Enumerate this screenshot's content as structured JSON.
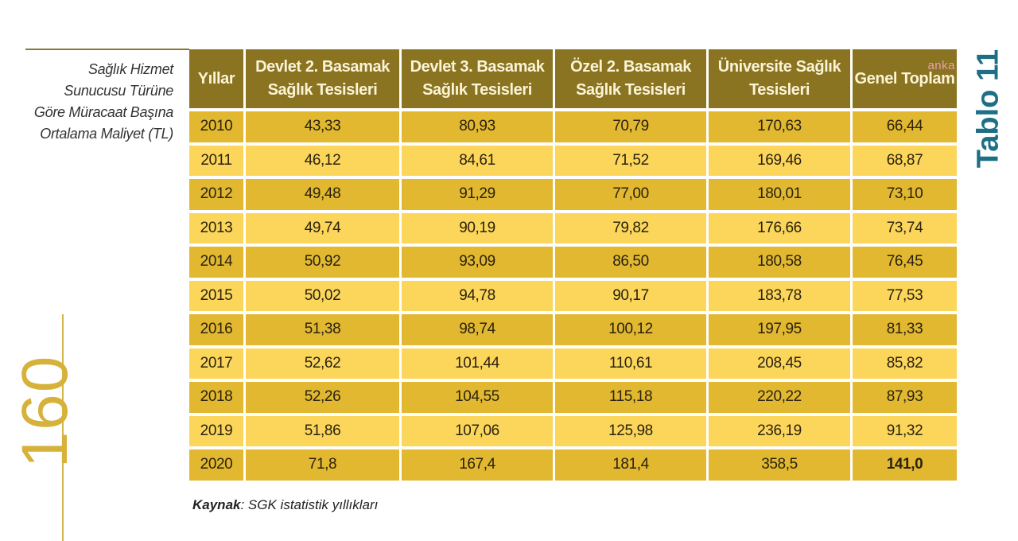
{
  "caption": "Sağlık Hizmet Sunucusu Türüne Göre Müracaat Başına Ortalama Maliyet (TL)",
  "page_number": "160",
  "table_label": "Tablo 11",
  "watermark": "anka",
  "headers": [
    "Yıllar",
    "Devlet 2. Basamak Sağlık Tesisleri",
    "Devlet 3. Basamak Sağlık Tesisleri",
    "Özel 2. Basamak Sağlık Tesisleri",
    "Üniversite Sağlık Tesisleri",
    "Genel Toplam"
  ],
  "rows": [
    [
      "2010",
      "43,33",
      "80,93",
      "70,79",
      "170,63",
      "66,44"
    ],
    [
      "2011",
      "46,12",
      "84,61",
      "71,52",
      "169,46",
      "68,87"
    ],
    [
      "2012",
      "49,48",
      "91,29",
      "77,00",
      "180,01",
      "73,10"
    ],
    [
      "2013",
      "49,74",
      "90,19",
      "79,82",
      "176,66",
      "73,74"
    ],
    [
      "2014",
      "50,92",
      "93,09",
      "86,50",
      "180,58",
      "76,45"
    ],
    [
      "2015",
      "50,02",
      "94,78",
      "90,17",
      "183,78",
      "77,53"
    ],
    [
      "2016",
      "51,38",
      "98,74",
      "100,12",
      "197,95",
      "81,33"
    ],
    [
      "2017",
      "52,62",
      "101,44",
      "110,61",
      "208,45",
      "85,82"
    ],
    [
      "2018",
      "52,26",
      "104,55",
      "115,18",
      "220,22",
      "87,93"
    ],
    [
      "2019",
      "51,86",
      "107,06",
      "125,98",
      "236,19",
      "91,32"
    ],
    [
      "2020",
      "71,8",
      "167,4",
      "181,4",
      "358,5",
      "141,0"
    ]
  ],
  "source": {
    "label": "Kaynak",
    "text": ": SGK istatistik yıllıkları"
  },
  "colors": {
    "header": "#8a7421",
    "row_dark": "#e1b82f",
    "row_light": "#fbd65a",
    "accent_teal": "#1e6f86"
  }
}
